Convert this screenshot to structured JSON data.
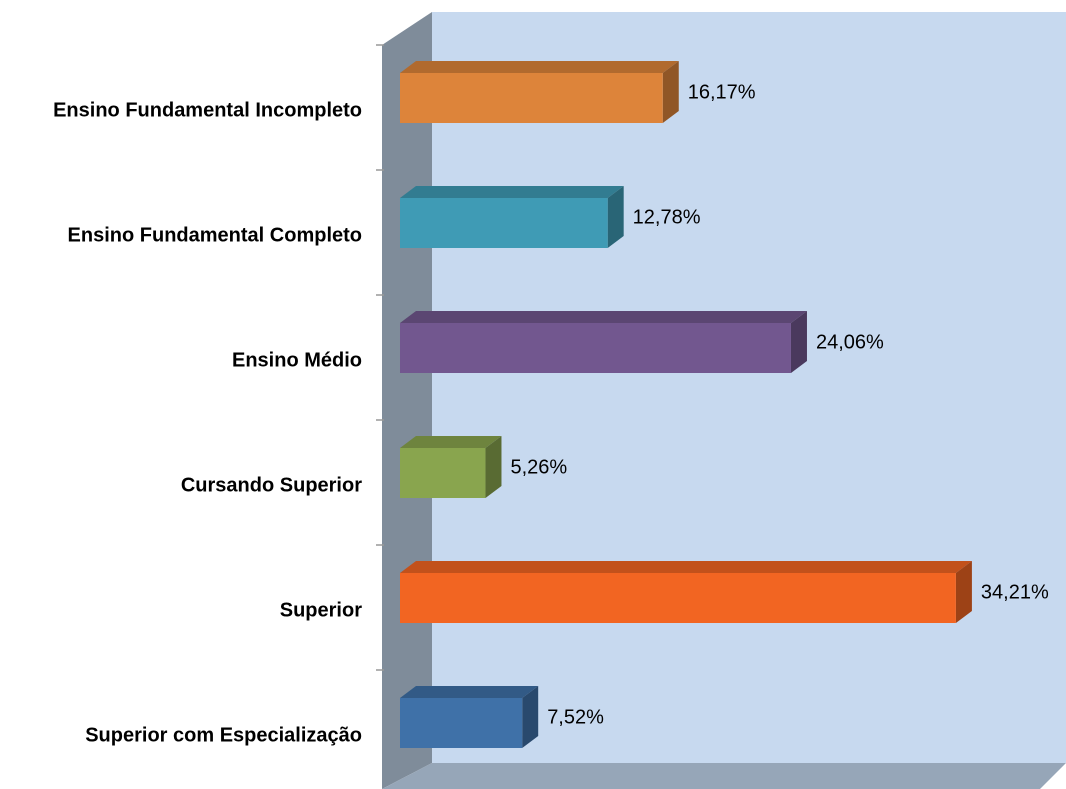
{
  "chart_data": {
    "type": "bar",
    "orientation": "horizontal",
    "categories": [
      "Ensino Fundamental Incompleto",
      "Ensino Fundamental Completo",
      "Ensino Médio",
      "Cursando Superior",
      "Superior",
      "Superior com Especialização"
    ],
    "values": [
      16.17,
      12.78,
      24.06,
      5.26,
      34.21,
      7.52
    ],
    "value_labels": [
      "16,17%",
      "12,78%",
      "24,06%",
      "5,26%",
      "34,21%",
      "7,52%"
    ],
    "colors": [
      "#dd843a",
      "#3f9bb5",
      "#72578f",
      "#89a54e",
      "#f26522",
      "#3f71a8"
    ]
  }
}
